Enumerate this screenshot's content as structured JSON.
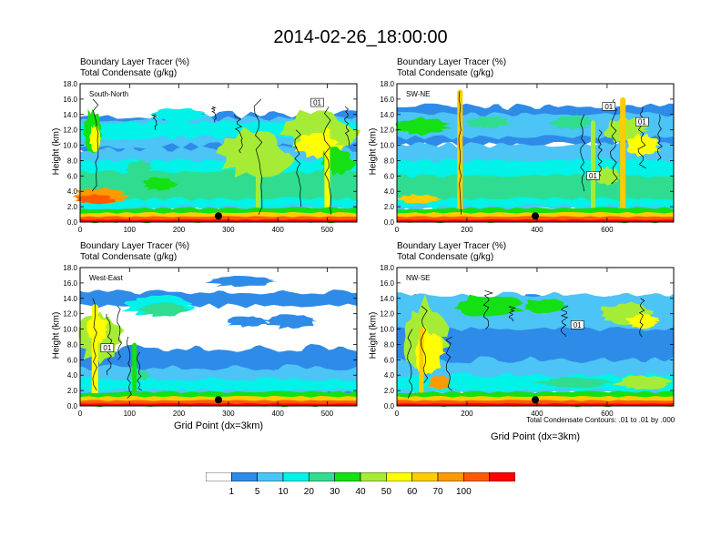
{
  "title": "2014-02-26_18:00:00",
  "colors": {
    "levels": [
      "#ffffff",
      "#2e8be8",
      "#4cc4f6",
      "#00f2e8",
      "#30dd90",
      "#14e014",
      "#a6ec36",
      "#ffff00",
      "#ffcc00",
      "#ff9900",
      "#ff5a00",
      "#ff0000"
    ],
    "contour": "#000000"
  },
  "footnote": "Total Condensate Contours: .01 to .01 by .000",
  "colorbar": {
    "labels": [
      "1",
      "5",
      "10",
      "20",
      "30",
      "40",
      "50",
      "60",
      "70",
      "100"
    ],
    "colors": [
      "#ffffff",
      "#2e8be8",
      "#4cc4f6",
      "#00f2e8",
      "#30dd90",
      "#14e014",
      "#a6ec36",
      "#ffff00",
      "#ffcc00",
      "#ff9900",
      "#ff5a00",
      "#ff0000"
    ]
  },
  "chart_data": [
    {
      "type": "heatmap",
      "panel": "South-North",
      "title_line1": "Boundary Layer Tracer    (%)",
      "title_line2": "Total Condensate    (g/kg)",
      "ylabel": "Height (km)",
      "xlabel": "",
      "xlim": [
        0,
        560
      ],
      "ylim": [
        0,
        18
      ],
      "xticks": [
        "0",
        "100",
        "200",
        "300",
        "400",
        "500"
      ],
      "yticks": [
        "0.0",
        "2.0",
        "4.0",
        "6.0",
        "8.0",
        "10.0",
        "12.0",
        "14.0",
        "16.0",
        "18.0"
      ],
      "contour_labels": [
        "01"
      ],
      "marker_x": 280
    },
    {
      "type": "heatmap",
      "panel": "SW-NE",
      "title_line1": "Boundary Layer Tracer    (%)",
      "title_line2": "Total Condensate    (g/kg)",
      "ylabel": "Height (km)",
      "xlabel": "",
      "xlim": [
        0,
        790
      ],
      "ylim": [
        0,
        18
      ],
      "xticks": [
        "0",
        "200",
        "400",
        "600"
      ],
      "yticks": [
        "0.0",
        "2.0",
        "4.0",
        "6.0",
        "8.0",
        "10.0",
        "12.0",
        "14.0",
        "16.0",
        "18.0"
      ],
      "contour_labels": [
        "01",
        "01",
        "01"
      ],
      "marker_x": 395
    },
    {
      "type": "heatmap",
      "panel": "West-East",
      "title_line1": "Boundary Layer Tracer    (%)",
      "title_line2": "Total Condensate    (g/kg)",
      "ylabel": "Height (km)",
      "xlabel": "Grid Point (dx=3km)",
      "xlim": [
        0,
        560
      ],
      "ylim": [
        0,
        18
      ],
      "xticks": [
        "0",
        "100",
        "200",
        "300",
        "400",
        "500"
      ],
      "yticks": [
        "0.0",
        "2.0",
        "4.0",
        "6.0",
        "8.0",
        "10.0",
        "12.0",
        "14.0",
        "16.0",
        "18.0"
      ],
      "contour_labels": [
        "01"
      ],
      "marker_x": 280
    },
    {
      "type": "heatmap",
      "panel": "NW-SE",
      "title_line1": "Boundary Layer Tracer    (%)",
      "title_line2": "Total Condensate    (g/kg)",
      "ylabel": "Height (km)",
      "xlabel": "Grid Point (dx=3km)",
      "xlim": [
        0,
        790
      ],
      "ylim": [
        0,
        18
      ],
      "xticks": [
        "0",
        "200",
        "400",
        "600"
      ],
      "yticks": [
        "0.0",
        "2.0",
        "4.0",
        "6.0",
        "8.0",
        "10.0",
        "12.0",
        "14.0",
        "16.0",
        "18.0"
      ],
      "contour_labels": [
        "01"
      ],
      "marker_x": 395
    }
  ]
}
